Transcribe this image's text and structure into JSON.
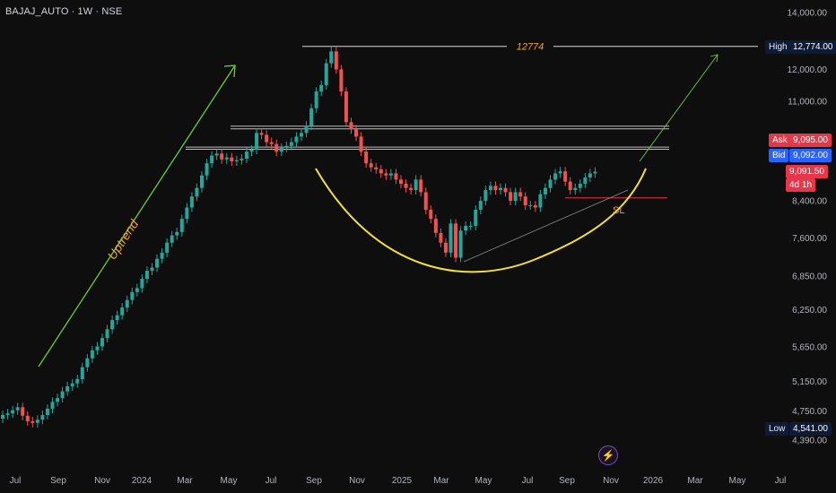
{
  "header": {
    "title": "BAJAJ_AUTO · 1W · NSE"
  },
  "colors": {
    "up": "#26a69a",
    "down": "#ef5350",
    "background": "#0e0e0e",
    "curve": "#f3e03a",
    "uptrend": "#6bd12f",
    "orange": "#f7a12b"
  },
  "price_tags": {
    "high_label": "High",
    "high_value": "12,774.00",
    "ask_label": "Ask",
    "ask_value": "9,095.00",
    "bid_label": "Bid",
    "bid_value": "9,092.00",
    "last_value": "9,091.50",
    "countdown": "4d 1h",
    "low_label": "Low",
    "low_value": "4,541.00"
  },
  "annotations": {
    "uptrend": "Uptrend",
    "high_line": "12774",
    "sl": "SL"
  },
  "icons": {
    "bolt": "lightning-icon"
  },
  "chart_data": {
    "type": "candlestick",
    "symbol": "BAJAJ_AUTO",
    "interval": "1W",
    "exchange": "NSE",
    "y_scale": "log",
    "y_ticks": [
      14000,
      12000,
      11000,
      9095,
      8400,
      7600,
      6850,
      6250,
      5650,
      5150,
      4750,
      4390
    ],
    "y_tick_labels": [
      "14,000.00",
      "12,000.00",
      "11,000.00",
      "9,095.00",
      "8,400.00",
      "7,600.00",
      "6,850.00",
      "6,250.00",
      "5,650.00",
      "5,150.00",
      "4,750.00",
      "4,390.00"
    ],
    "x_tick_labels": [
      "Jul",
      "Sep",
      "Nov",
      "2024",
      "Mar",
      "May",
      "Jul",
      "Sep",
      "Nov",
      "2025",
      "Mar",
      "May",
      "Jul",
      "Sep",
      "Nov",
      "2026",
      "Mar",
      "May",
      "Jul"
    ],
    "high": 12774,
    "low": 4541,
    "resistance_levels": [
      10250,
      9690
    ],
    "stop_loss": 8470,
    "closes": [
      4700,
      4720,
      4760,
      4800,
      4690,
      4620,
      4600,
      4640,
      4700,
      4780,
      4870,
      4920,
      5010,
      5080,
      5120,
      5180,
      5350,
      5480,
      5600,
      5660,
      5790,
      5930,
      6080,
      6160,
      6290,
      6420,
      6560,
      6630,
      6800,
      6950,
      7010,
      7180,
      7300,
      7500,
      7650,
      7720,
      8000,
      8250,
      8500,
      8700,
      9000,
      9300,
      9500,
      9550,
      9400,
      9450,
      9350,
      9380,
      9420,
      9600,
      9650,
      10100,
      10050,
      9850,
      9800,
      9600,
      9700,
      9750,
      9850,
      10000,
      10100,
      10300,
      10800,
      11300,
      11500,
      12200,
      12600,
      12000,
      11300,
      10400,
      10200,
      10000,
      9600,
      9300,
      9200,
      9150,
      9050,
      9000,
      9050,
      8900,
      8800,
      8700,
      8650,
      8900,
      8600,
      8200,
      8000,
      7700,
      7500,
      7300,
      7900,
      7200,
      7750,
      7850,
      7850,
      8200,
      8400,
      8650,
      8750,
      8650,
      8700,
      8600,
      8400,
      8600,
      8500,
      8300,
      8300,
      8250,
      8550,
      8700,
      8900,
      9050,
      9100,
      8850,
      8650,
      8700,
      8800,
      8950,
      9050,
      9091.5
    ]
  }
}
